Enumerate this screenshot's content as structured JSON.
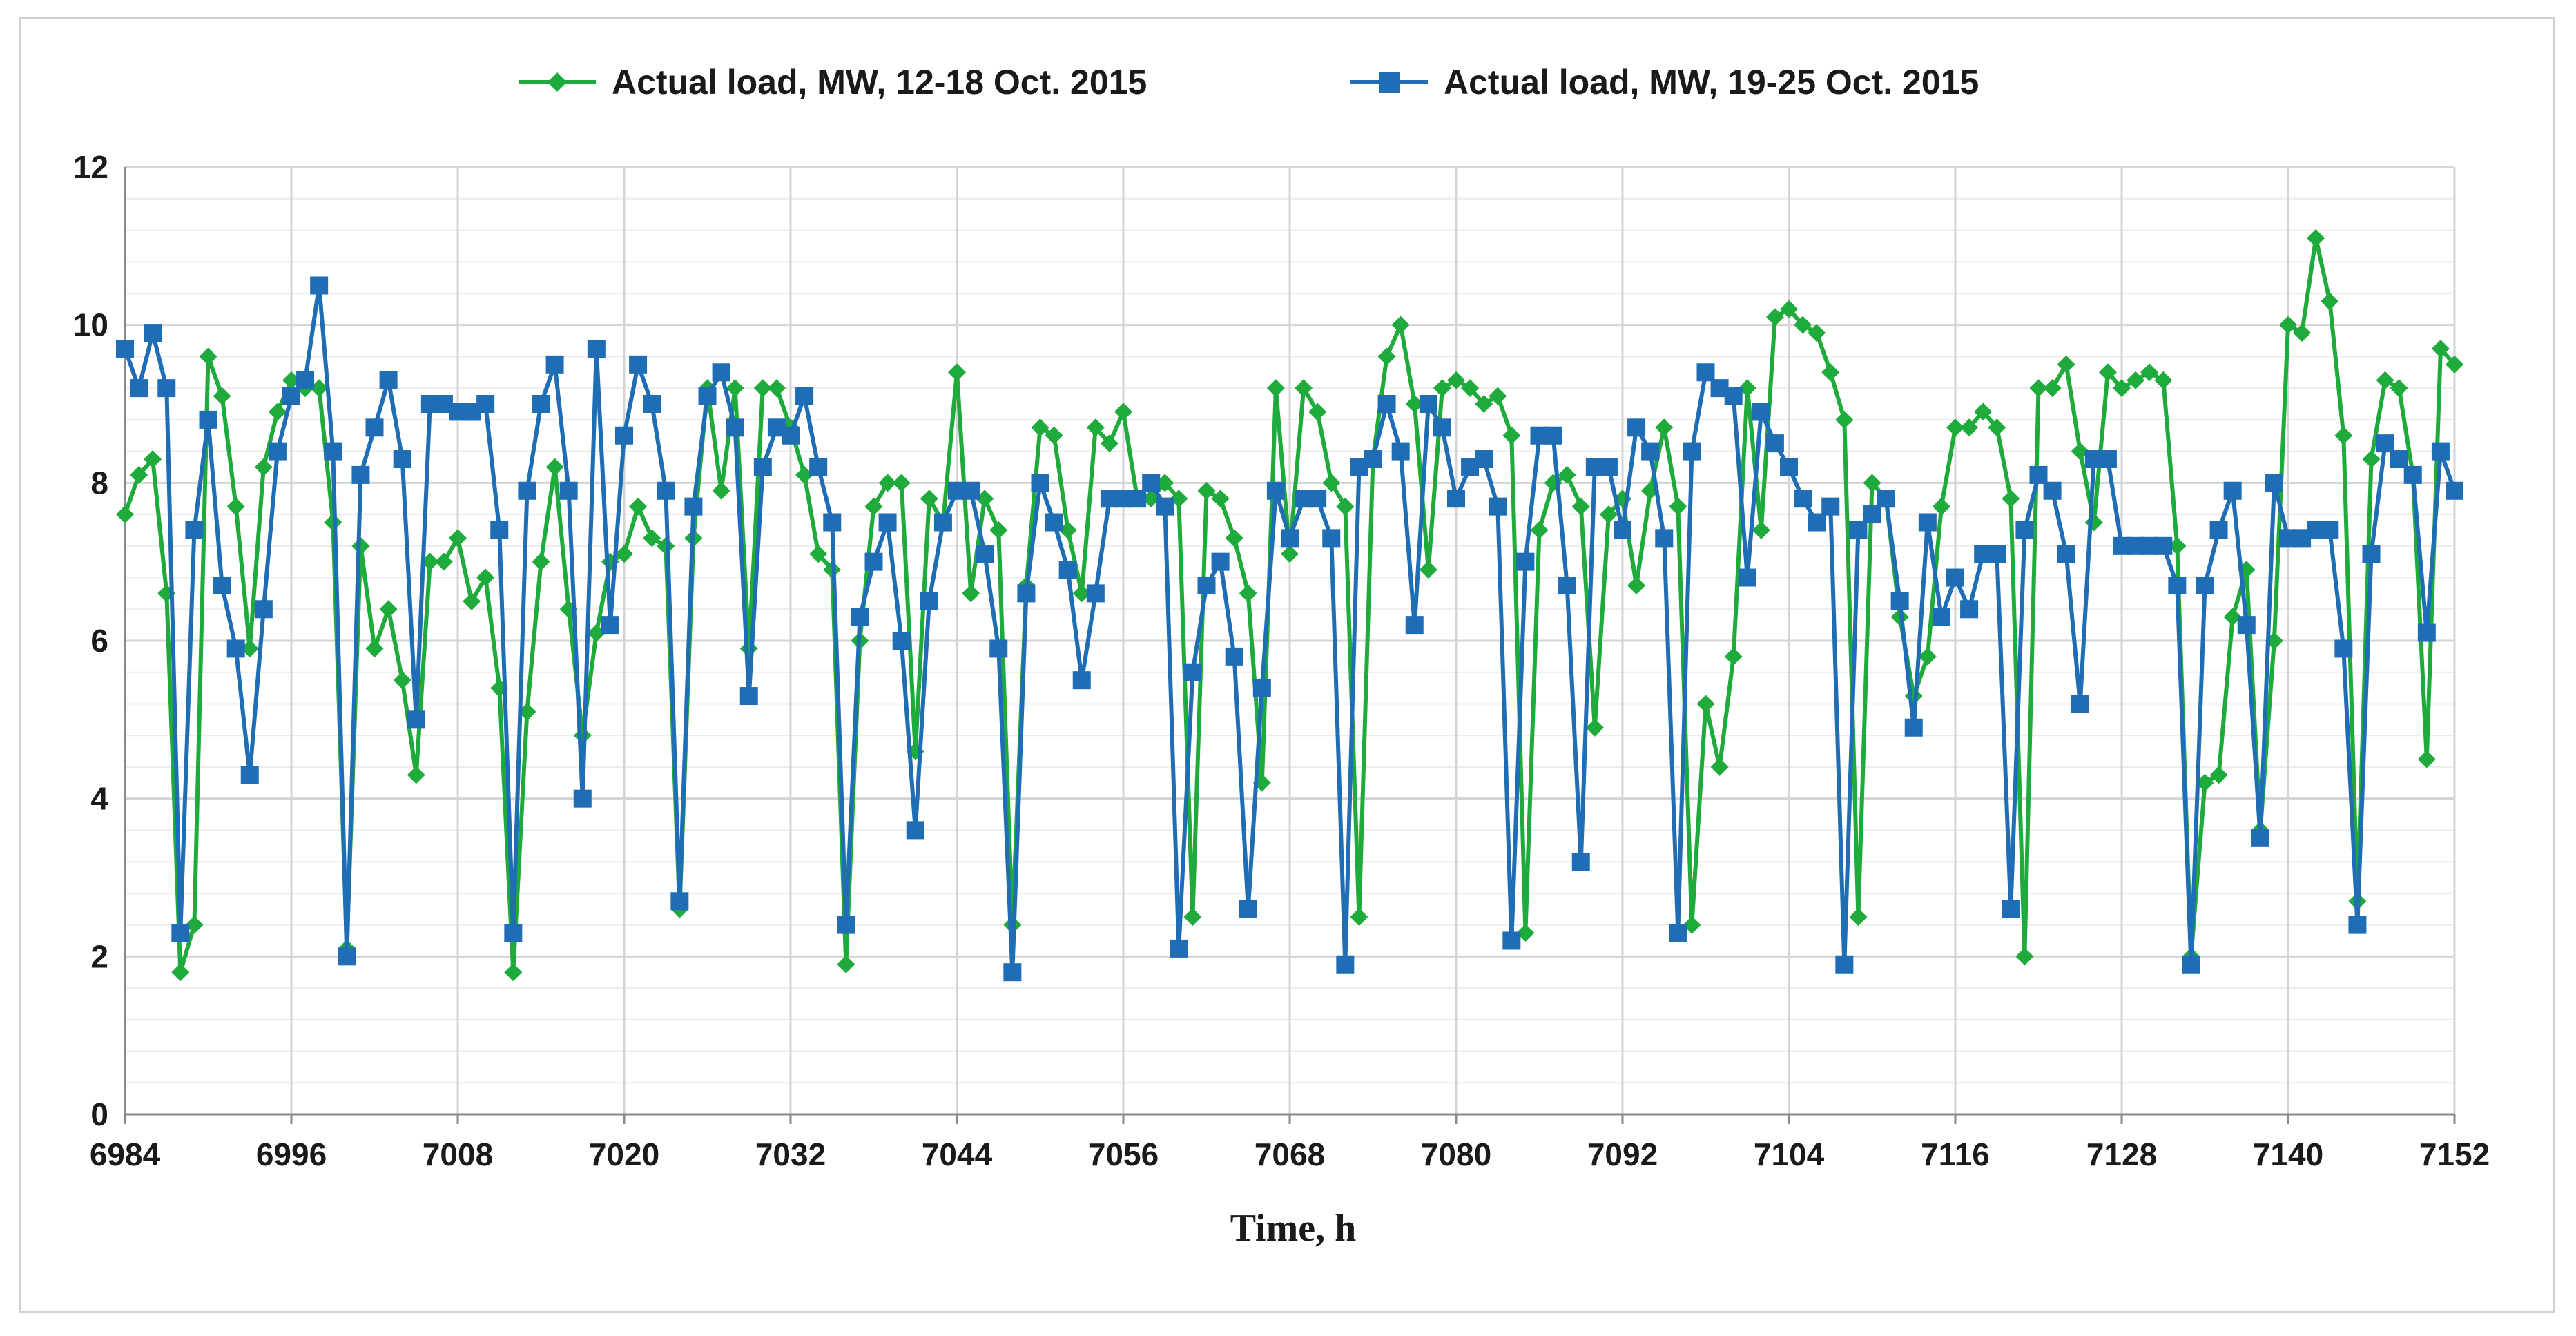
{
  "chart_data": {
    "type": "line",
    "title": "",
    "xlabel": "Time, h",
    "ylabel": "",
    "xlim": [
      6984,
      7152
    ],
    "ylim": [
      0,
      12
    ],
    "xticks": [
      6984,
      6996,
      7008,
      7020,
      7032,
      7044,
      7056,
      7068,
      7080,
      7092,
      7104,
      7116,
      7128,
      7140,
      7152
    ],
    "yticks": [
      0,
      2,
      4,
      6,
      8,
      10,
      12
    ],
    "grid": true,
    "legend_position": "top-center",
    "series": [
      {
        "name": "Actual load, MW, 12-18 Oct. 2015",
        "color": "#1faa3c",
        "marker": "diamond",
        "x_start": 6984,
        "x_step": 1,
        "values": [
          7.6,
          8.1,
          8.3,
          6.6,
          1.8,
          2.4,
          9.6,
          9.1,
          7.7,
          5.9,
          8.2,
          8.9,
          9.3,
          9.2,
          9.2,
          7.5,
          2.1,
          7.2,
          5.9,
          6.4,
          5.5,
          4.3,
          7.0,
          7.0,
          7.3,
          6.5,
          6.8,
          5.4,
          1.8,
          5.1,
          7.0,
          8.2,
          6.4,
          4.8,
          6.1,
          7.0,
          7.1,
          7.7,
          7.3,
          7.2,
          2.6,
          7.3,
          9.2,
          7.9,
          9.2,
          5.9,
          9.2,
          9.2,
          8.7,
          8.1,
          7.1,
          6.9,
          1.9,
          6.0,
          7.7,
          8.0,
          8.0,
          4.6,
          7.8,
          7.5,
          9.4,
          6.6,
          7.8,
          7.4,
          2.4,
          6.7,
          8.7,
          8.6,
          7.4,
          6.6,
          8.7,
          8.5,
          8.9,
          7.8,
          7.8,
          8.0,
          7.8,
          2.5,
          7.9,
          7.8,
          7.3,
          6.6,
          4.2,
          9.2,
          7.1,
          9.2,
          8.9,
          8.0,
          7.7,
          2.5,
          8.3,
          9.6,
          10.0,
          9.0,
          6.9,
          9.2,
          9.3,
          9.2,
          9.0,
          9.1,
          8.6,
          2.3,
          7.4,
          8.0,
          8.1,
          7.7,
          4.9,
          7.6,
          7.8,
          6.7,
          7.9,
          8.7,
          7.7,
          2.4,
          5.2,
          4.4,
          5.8,
          9.2,
          7.4,
          10.1,
          10.2,
          10.0,
          9.9,
          9.4,
          8.8,
          2.5,
          8.0,
          7.8,
          6.3,
          5.3,
          5.8,
          7.7,
          8.7,
          8.7,
          8.9,
          8.7,
          7.8,
          2.0,
          9.2,
          9.2,
          9.5,
          8.4,
          7.5,
          9.4,
          9.2,
          9.3,
          9.4,
          9.3,
          7.2,
          2.0,
          4.2,
          4.3,
          6.3,
          6.9,
          3.6,
          6.0,
          10.0,
          9.9,
          11.1,
          10.3,
          8.6,
          2.7,
          8.3,
          9.3,
          9.2,
          8.1,
          4.5,
          9.7,
          9.5
        ]
      },
      {
        "name": "Actual load, MW, 19-25 Oct. 2015",
        "color": "#1f6db4",
        "marker": "square",
        "x_start": 6984,
        "x_step": 1,
        "values": [
          9.7,
          9.2,
          9.9,
          9.2,
          2.3,
          7.4,
          8.8,
          6.7,
          5.9,
          4.3,
          6.4,
          8.4,
          9.1,
          9.3,
          10.5,
          8.4,
          2.0,
          8.1,
          8.7,
          9.3,
          8.3,
          5.0,
          9.0,
          9.0,
          8.9,
          8.9,
          9.0,
          7.4,
          2.3,
          7.9,
          9.0,
          9.5,
          7.9,
          4.0,
          9.7,
          6.2,
          8.6,
          9.5,
          9.0,
          7.9,
          2.7,
          7.7,
          9.1,
          9.4,
          8.7,
          5.3,
          8.2,
          8.7,
          8.6,
          9.1,
          8.2,
          7.5,
          2.4,
          6.3,
          7.0,
          7.5,
          6.0,
          3.6,
          6.5,
          7.5,
          7.9,
          7.9,
          7.1,
          5.9,
          1.8,
          6.6,
          8.0,
          7.5,
          6.9,
          5.5,
          6.6,
          7.8,
          7.8,
          7.8,
          8.0,
          7.7,
          2.1,
          5.6,
          6.7,
          7.0,
          5.8,
          2.6,
          5.4,
          7.9,
          7.3,
          7.8,
          7.8,
          7.3,
          1.9,
          8.2,
          8.3,
          9.0,
          8.4,
          6.2,
          9.0,
          8.7,
          7.8,
          8.2,
          8.3,
          7.7,
          2.2,
          7.0,
          8.6,
          8.6,
          6.7,
          3.2,
          8.2,
          8.2,
          7.4,
          8.7,
          8.4,
          7.3,
          2.3,
          8.4,
          9.4,
          9.2,
          9.1,
          6.8,
          8.9,
          8.5,
          8.2,
          7.8,
          7.5,
          7.7,
          1.9,
          7.4,
          7.6,
          7.8,
          6.5,
          4.9,
          7.5,
          6.3,
          6.8,
          6.4,
          7.1,
          7.1,
          2.6,
          7.4,
          8.1,
          7.9,
          7.1,
          5.2,
          8.3,
          8.3,
          7.2,
          7.2,
          7.2,
          7.2,
          6.7,
          1.9,
          6.7,
          7.4,
          7.9,
          6.2,
          3.5,
          8.0,
          7.3,
          7.3,
          7.4,
          7.4,
          5.9,
          2.4,
          7.1,
          8.5,
          8.3,
          8.1,
          6.1,
          8.4,
          7.9
        ]
      }
    ]
  }
}
